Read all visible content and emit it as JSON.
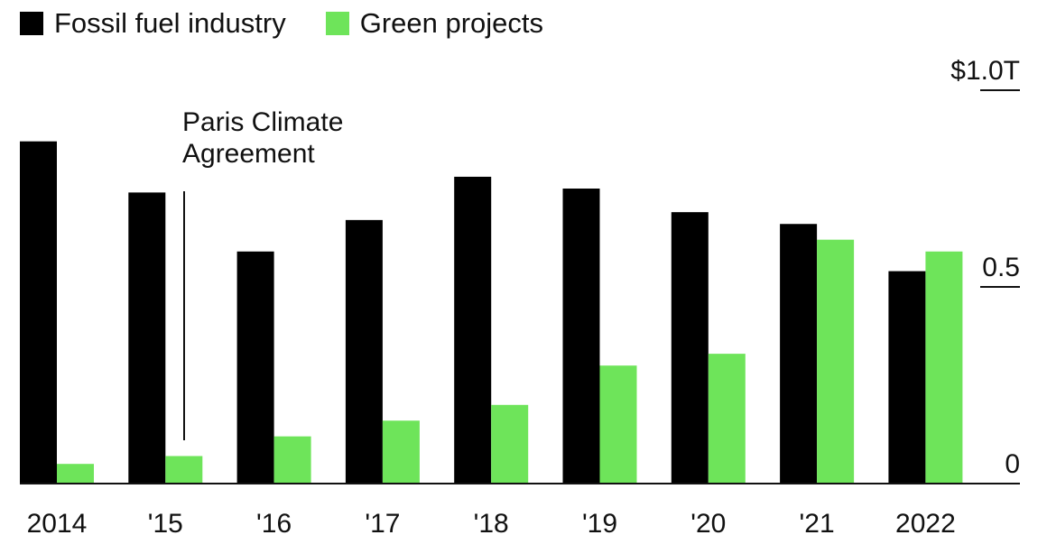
{
  "chart_data": {
    "type": "bar",
    "categories": [
      "2014",
      "'15",
      "'16",
      "'17",
      "'18",
      "'19",
      "'20",
      "'21",
      "2022"
    ],
    "series": [
      {
        "name": "Fossil fuel industry",
        "color": "#000000",
        "values": [
          0.87,
          0.74,
          0.59,
          0.67,
          0.78,
          0.75,
          0.69,
          0.66,
          0.54
        ]
      },
      {
        "name": "Green projects",
        "color": "#6ee45a",
        "values": [
          0.05,
          0.07,
          0.12,
          0.16,
          0.2,
          0.3,
          0.33,
          0.62,
          0.59
        ]
      }
    ],
    "ylim": [
      0,
      1.0
    ],
    "yticks": [
      {
        "value": 0,
        "label": "0"
      },
      {
        "value": 0.5,
        "label": "0.5"
      },
      {
        "value": 1.0,
        "label": "$1.0T"
      }
    ],
    "annotation": {
      "text_line1": "Paris Climate",
      "text_line2": "Agreement",
      "at_category": "'15"
    },
    "legend_position": "top-left",
    "grid": false
  }
}
